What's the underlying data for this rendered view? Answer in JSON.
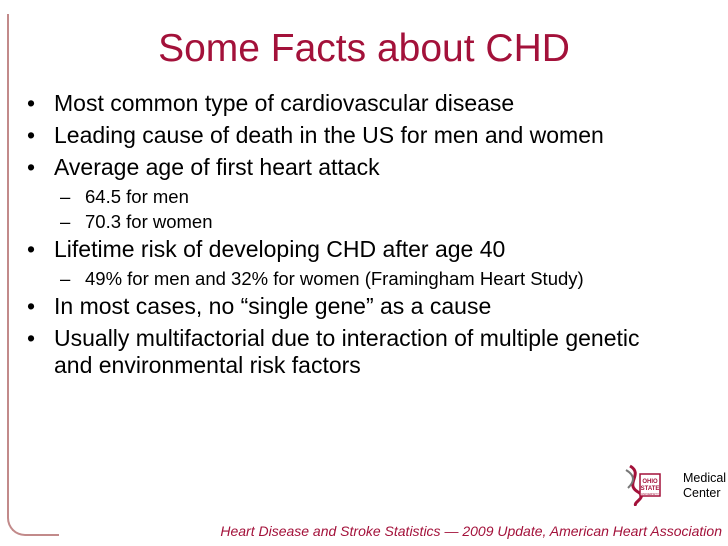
{
  "slide": {
    "title": "Some Facts about CHD",
    "bullet_glyph": "•",
    "sub_glyph": "–",
    "bullets": [
      {
        "text": "Most common type of cardiovascular disease",
        "sub": []
      },
      {
        "text": "Leading cause of death in the US for men and women",
        "sub": []
      },
      {
        "text": "Average age of first heart attack",
        "sub": [
          "64.5 for men",
          "70.3 for women"
        ]
      },
      {
        "text": "Lifetime risk of developing CHD after age 40",
        "sub": [
          "49% for men and 32% for women (Framingham Heart Study)"
        ]
      },
      {
        "text": "In most cases, no “single gene” as a cause",
        "sub": []
      },
      {
        "text": "Usually multifactorial due to interaction of multiple genetic and environmental risk factors",
        "sub": []
      }
    ],
    "logo": {
      "line1": "Medical",
      "line2": "Center",
      "seal_text": "OHIO STATE UNIVERSITY"
    },
    "footer": "Heart Disease and Stroke Statistics — 2009 Update, American Heart Association",
    "colors": {
      "accent": "#a3113a",
      "frame": "#c28a8a"
    }
  }
}
